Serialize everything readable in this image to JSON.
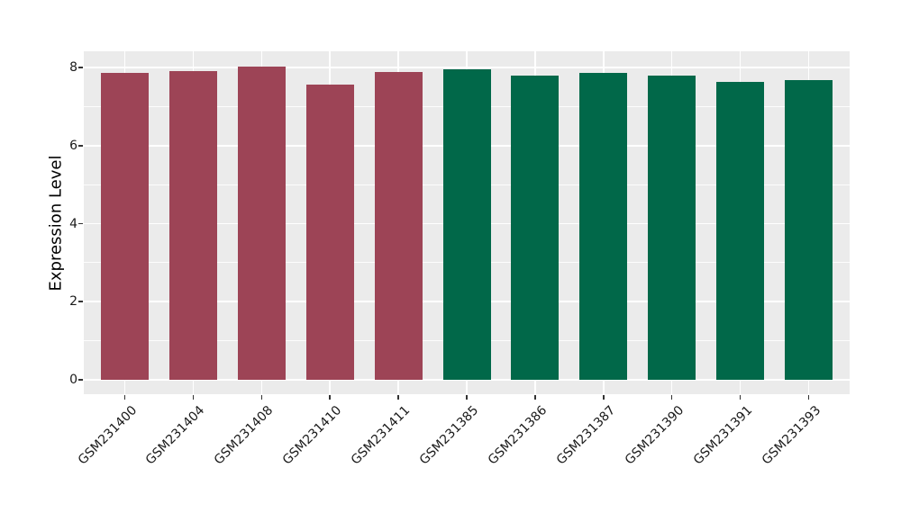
{
  "chart_data": {
    "type": "bar",
    "title": "",
    "xlabel": "",
    "ylabel": "Expression Level",
    "categories": [
      "GSM231400",
      "GSM231404",
      "GSM231408",
      "GSM231410",
      "GSM231411",
      "GSM231385",
      "GSM231386",
      "GSM231387",
      "GSM231390",
      "GSM231391",
      "GSM231393"
    ],
    "values": [
      7.86,
      7.91,
      8.02,
      7.56,
      7.89,
      7.96,
      7.79,
      7.86,
      7.79,
      7.63,
      7.67
    ],
    "bar_colors": [
      "#9D4456",
      "#9D4456",
      "#9D4456",
      "#9D4456",
      "#9D4456",
      "#016849",
      "#016849",
      "#016849",
      "#016849",
      "#016849",
      "#016849"
    ],
    "group_colors": {
      "maroon_group": "#9D4456",
      "green_group": "#016849"
    },
    "yticks": [
      0,
      2,
      4,
      6,
      8
    ],
    "minor_yticks": [
      1,
      3,
      5,
      7
    ],
    "ylim": [
      0,
      8.41
    ],
    "x_tick_rotation": 45,
    "grid": true,
    "legend": false,
    "panel_bg": "#EBEBEB",
    "grid_color": "#FFFFFF",
    "tick_color": "#333333",
    "text_color": "#1A1A1A",
    "bg_color": "#FFFFFF"
  }
}
